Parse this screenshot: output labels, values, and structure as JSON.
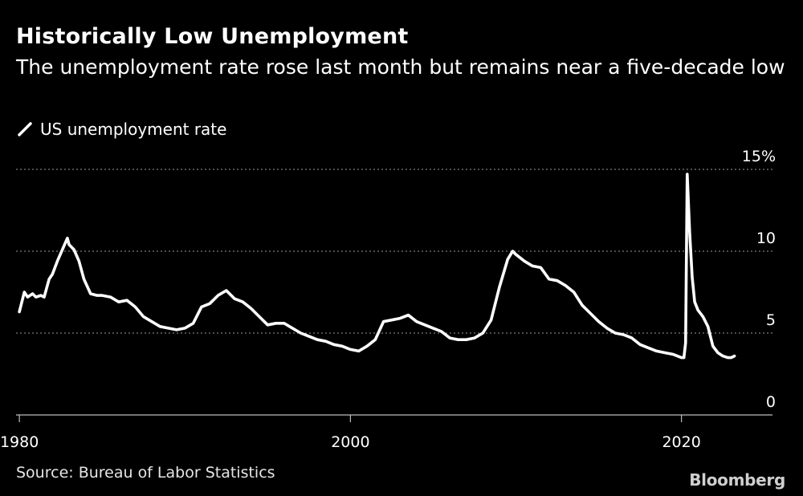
{
  "header": {
    "title": "Historically Low Unemployment",
    "subtitle": "The unemployment rate rose last month but remains near a five-decade low"
  },
  "legend": {
    "label": "US unemployment rate"
  },
  "footer": {
    "source": "Source: Bureau of Labor Statistics",
    "brand": "Bloomberg"
  },
  "colors": {
    "background": "#000000",
    "line": "#ffffff",
    "grid": "#9a9a9a"
  },
  "chart_data": {
    "type": "line",
    "title": "Historically Low Unemployment",
    "xlabel": "",
    "ylabel": "",
    "xlim": [
      1979.8,
      2025.5
    ],
    "ylim": [
      0,
      15
    ],
    "x_ticks": [
      1980,
      2000,
      2020
    ],
    "x_tick_labels": [
      "1980",
      "2000",
      "2020"
    ],
    "y_ticks": [
      0,
      5,
      10,
      15
    ],
    "y_tick_labels": [
      "0",
      "5",
      "10",
      "15%"
    ],
    "grid": "horizontal dotted",
    "legend_position": "top-left",
    "series": [
      {
        "name": "US unemployment rate",
        "x": [
          1980.0,
          1980.3,
          1980.5,
          1980.8,
          1981.0,
          1981.3,
          1981.5,
          1981.8,
          1982.0,
          1982.3,
          1982.6,
          1982.9,
          1983.0,
          1983.3,
          1983.6,
          1983.9,
          1984.3,
          1984.7,
          1985.0,
          1985.5,
          1986.0,
          1986.5,
          1987.0,
          1987.5,
          1988.0,
          1988.5,
          1989.0,
          1989.5,
          1990.0,
          1990.5,
          1991.0,
          1991.5,
          1992.0,
          1992.5,
          1993.0,
          1993.5,
          1994.0,
          1994.5,
          1995.0,
          1995.5,
          1996.0,
          1996.5,
          1997.0,
          1997.5,
          1998.0,
          1998.5,
          1999.0,
          1999.5,
          2000.0,
          2000.5,
          2001.0,
          2001.5,
          2002.0,
          2002.5,
          2003.0,
          2003.5,
          2004.0,
          2004.5,
          2005.0,
          2005.5,
          2006.0,
          2006.5,
          2007.0,
          2007.5,
          2008.0,
          2008.5,
          2009.0,
          2009.5,
          2009.8,
          2010.0,
          2010.5,
          2011.0,
          2011.5,
          2012.0,
          2012.5,
          2013.0,
          2013.5,
          2014.0,
          2014.5,
          2015.0,
          2015.5,
          2016.0,
          2016.5,
          2017.0,
          2017.5,
          2018.0,
          2018.5,
          2019.0,
          2019.5,
          2020.0,
          2020.15,
          2020.25,
          2020.35,
          2020.5,
          2020.65,
          2020.8,
          2021.0,
          2021.3,
          2021.6,
          2021.9,
          2022.2,
          2022.5,
          2022.8,
          2023.0,
          2023.2
        ],
        "values": [
          6.3,
          7.5,
          7.2,
          7.4,
          7.2,
          7.3,
          7.2,
          8.3,
          8.6,
          9.4,
          10.1,
          10.8,
          10.4,
          10.1,
          9.4,
          8.3,
          7.4,
          7.3,
          7.3,
          7.2,
          6.9,
          7.0,
          6.6,
          6.0,
          5.7,
          5.4,
          5.3,
          5.2,
          5.3,
          5.6,
          6.6,
          6.8,
          7.3,
          7.6,
          7.1,
          6.9,
          6.5,
          6.0,
          5.5,
          5.6,
          5.6,
          5.3,
          5.0,
          4.8,
          4.6,
          4.5,
          4.3,
          4.2,
          4.0,
          3.9,
          4.2,
          4.6,
          5.7,
          5.8,
          5.9,
          6.1,
          5.7,
          5.5,
          5.3,
          5.1,
          4.7,
          4.6,
          4.6,
          4.7,
          5.0,
          5.8,
          7.8,
          9.5,
          10.0,
          9.8,
          9.4,
          9.1,
          9.0,
          8.3,
          8.2,
          7.9,
          7.5,
          6.7,
          6.2,
          5.7,
          5.3,
          5.0,
          4.9,
          4.7,
          4.3,
          4.1,
          3.9,
          3.8,
          3.7,
          3.5,
          3.5,
          4.4,
          14.7,
          11.1,
          8.4,
          6.9,
          6.4,
          6.0,
          5.4,
          4.2,
          3.8,
          3.6,
          3.5,
          3.5,
          3.6
        ]
      }
    ]
  }
}
